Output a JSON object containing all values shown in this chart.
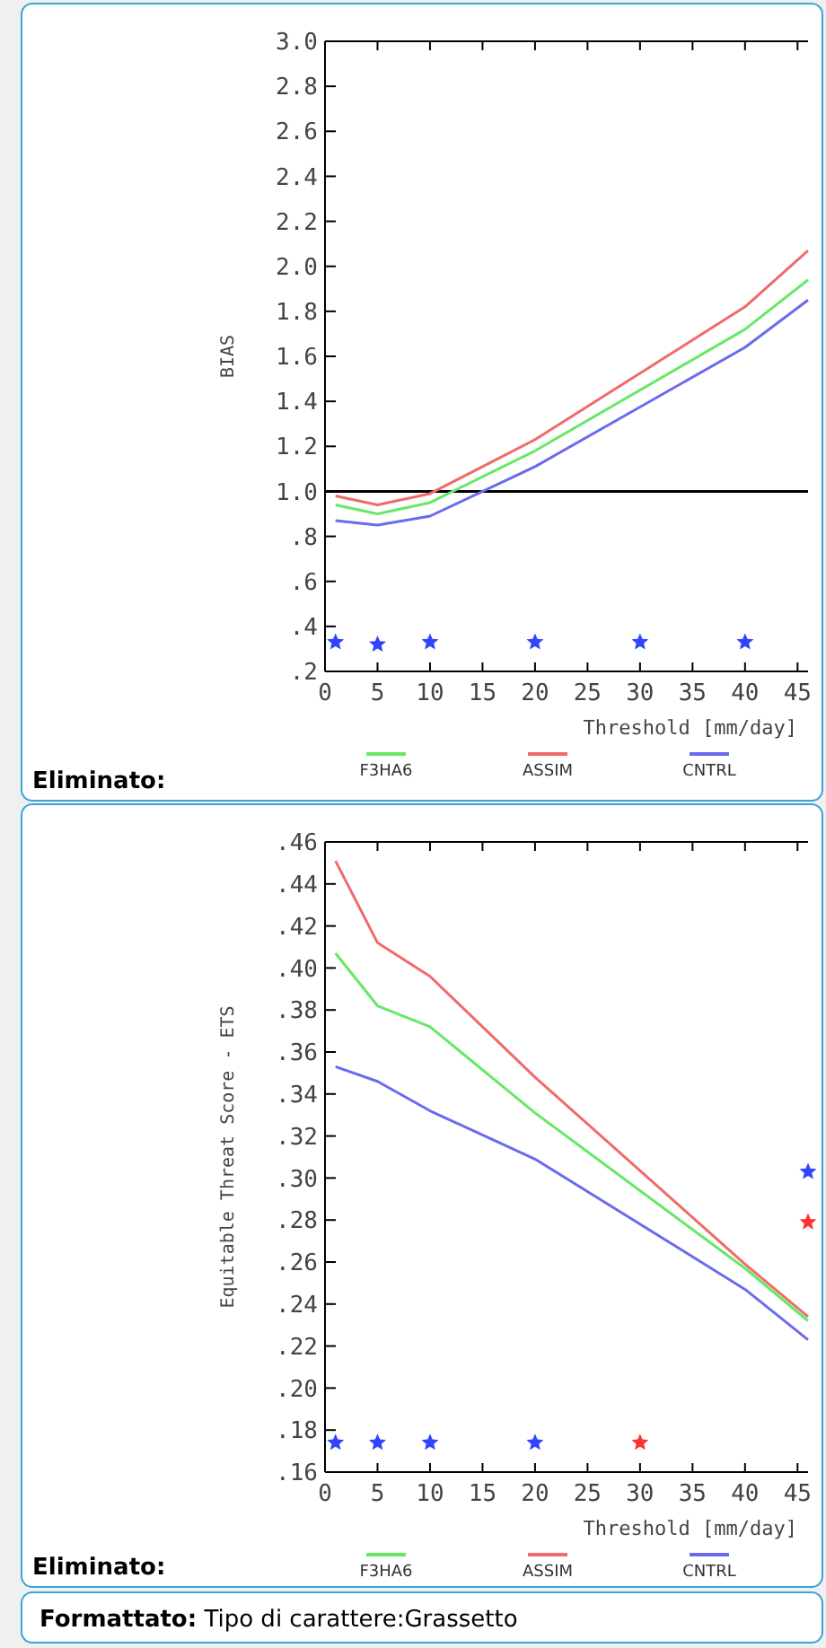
{
  "chart_data": [
    {
      "type": "line",
      "xlabel": "Threshold [mm/day]",
      "ylabel": "BIAS",
      "xlim": [
        0,
        46
      ],
      "xticks": [
        0,
        5,
        10,
        15,
        20,
        25,
        30,
        35,
        40,
        45
      ],
      "ylim": [
        0.2,
        3.0
      ],
      "yticks": [
        {
          "value": 3.0,
          "label": "3.0"
        },
        {
          "value": 2.8,
          "label": "2.8"
        },
        {
          "value": 2.6,
          "label": "2.6"
        },
        {
          "value": 2.4,
          "label": "2.4"
        },
        {
          "value": 2.2,
          "label": "2.2"
        },
        {
          "value": 2.0,
          "label": "2.0"
        },
        {
          "value": 1.8,
          "label": "1.8"
        },
        {
          "value": 1.6,
          "label": "1.6"
        },
        {
          "value": 1.4,
          "label": "1.4"
        },
        {
          "value": 1.2,
          "label": "1.2"
        },
        {
          "value": 1.0,
          "label": "1.0"
        },
        {
          "value": 0.8,
          "label": ".8"
        },
        {
          "value": 0.6,
          "label": ".6"
        },
        {
          "value": 0.4,
          "label": ".4"
        },
        {
          "value": 0.2,
          "label": ".2"
        }
      ],
      "x": [
        1,
        5,
        10,
        20,
        40,
        46
      ],
      "grid": false,
      "legend": "bottom",
      "marker": "none",
      "line_style": "solid",
      "series": [
        {
          "name": "F3HA6",
          "color": "#66e866",
          "values": [
            0.94,
            0.9,
            0.95,
            1.18,
            1.72,
            1.94
          ]
        },
        {
          "name": "ASSIM",
          "color": "#f06a6a",
          "values": [
            0.98,
            0.94,
            0.99,
            1.23,
            1.82,
            2.07
          ]
        },
        {
          "name": "CNTRL",
          "color": "#6a6af0",
          "values": [
            0.87,
            0.85,
            0.89,
            1.11,
            1.64,
            1.85
          ]
        },
        {
          "type": "scatter",
          "color": "#3344ff",
          "marker": "star",
          "x": [
            1,
            5,
            10,
            20,
            30,
            40
          ],
          "values": [
            0.33,
            0.32,
            0.33,
            0.33,
            0.33,
            0.33
          ]
        }
      ],
      "ref_lines": [
        {
          "axis": "y",
          "value": 1.0,
          "color": "#000000"
        }
      ],
      "annotations": [
        "Eliminato:"
      ]
    },
    {
      "type": "line",
      "xlabel": "Threshold [mm/day]",
      "ylabel": "Equitable Threat Score - ETS",
      "xlim": [
        0,
        46
      ],
      "xticks": [
        0,
        5,
        10,
        15,
        20,
        25,
        30,
        35,
        40,
        45
      ],
      "ylim": [
        0.16,
        0.46
      ],
      "yticks": [
        {
          "value": 0.46,
          "label": ".46"
        },
        {
          "value": 0.44,
          "label": ".44"
        },
        {
          "value": 0.42,
          "label": ".42"
        },
        {
          "value": 0.4,
          "label": ".40"
        },
        {
          "value": 0.38,
          "label": ".38"
        },
        {
          "value": 0.36,
          "label": ".36"
        },
        {
          "value": 0.34,
          "label": ".34"
        },
        {
          "value": 0.32,
          "label": ".32"
        },
        {
          "value": 0.3,
          "label": ".30"
        },
        {
          "value": 0.28,
          "label": ".28"
        },
        {
          "value": 0.26,
          "label": ".26"
        },
        {
          "value": 0.24,
          "label": ".24"
        },
        {
          "value": 0.22,
          "label": ".22"
        },
        {
          "value": 0.2,
          "label": ".20"
        },
        {
          "value": 0.18,
          "label": ".18"
        },
        {
          "value": 0.16,
          "label": ".16"
        }
      ],
      "x": [
        1,
        5,
        10,
        20,
        40,
        46
      ],
      "grid": false,
      "legend": "bottom",
      "marker": "none",
      "line_style": "solid",
      "series": [
        {
          "name": "F3HA6",
          "color": "#66e866",
          "values": [
            0.407,
            0.382,
            0.372,
            0.331,
            0.257,
            0.232
          ]
        },
        {
          "name": "ASSIM",
          "color": "#f06a6a",
          "values": [
            0.451,
            0.412,
            0.396,
            0.348,
            0.259,
            0.234
          ]
        },
        {
          "name": "CNTRL",
          "color": "#6a6af0",
          "values": [
            0.353,
            0.346,
            0.332,
            0.309,
            0.247,
            0.223
          ]
        },
        {
          "type": "scatter",
          "color": "#3344ff",
          "marker": "star",
          "x": [
            1,
            5,
            10,
            20,
            46
          ],
          "values": [
            0.174,
            0.174,
            0.174,
            0.174,
            0.303
          ]
        },
        {
          "type": "scatter",
          "color": "#ff3333",
          "marker": "star",
          "x": [
            30,
            46
          ],
          "values": [
            0.174,
            0.279
          ]
        }
      ],
      "annotations": [
        "Eliminato:",
        "Formattato: Tipo di carattere:Grassetto"
      ]
    }
  ]
}
